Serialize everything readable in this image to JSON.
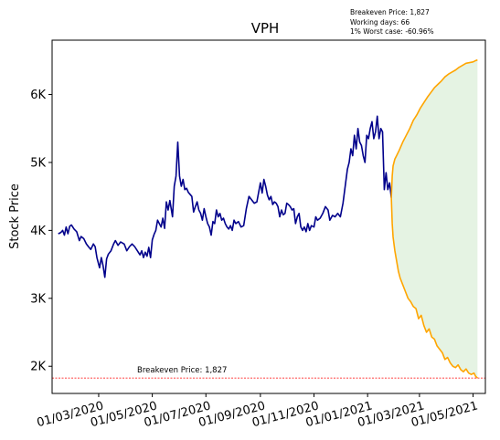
{
  "chart_data": {
    "type": "line",
    "title": "VPH",
    "ylabel": "Stock Price",
    "xlabel": "",
    "ylim": [
      1600,
      6800
    ],
    "xlim": [
      "2020-01-08",
      "2021-05-15"
    ],
    "grid": false,
    "y_ticks": [
      {
        "value": 2000,
        "label": "2K"
      },
      {
        "value": 3000,
        "label": "3K"
      },
      {
        "value": 4000,
        "label": "4K"
      },
      {
        "value": 5000,
        "label": "5K"
      },
      {
        "value": 6000,
        "label": "6K"
      }
    ],
    "x_ticks": [
      {
        "date": "2020-03-01",
        "label": "01/03/2020"
      },
      {
        "date": "2020-05-01",
        "label": "01/05/2020"
      },
      {
        "date": "2020-07-01",
        "label": "01/07/2020"
      },
      {
        "date": "2020-09-01",
        "label": "01/09/2020"
      },
      {
        "date": "2020-11-01",
        "label": "01/11/2020"
      },
      {
        "date": "2021-01-01",
        "label": "01/01/2021"
      },
      {
        "date": "2021-03-01",
        "label": "01/03/2021"
      },
      {
        "date": "2021-05-01",
        "label": "01/05/2021"
      }
    ],
    "series": [
      {
        "color": "#00008b",
        "points": [
          [
            "2020-01-15",
            3950
          ],
          [
            "2020-01-18",
            3970
          ],
          [
            "2020-01-20",
            4000
          ],
          [
            "2020-01-22",
            3930
          ],
          [
            "2020-01-24",
            4050
          ],
          [
            "2020-01-26",
            3950
          ],
          [
            "2020-01-28",
            4060
          ],
          [
            "2020-01-30",
            4080
          ],
          [
            "2020-02-02",
            4020
          ],
          [
            "2020-02-05",
            3980
          ],
          [
            "2020-02-08",
            3850
          ],
          [
            "2020-02-10",
            3910
          ],
          [
            "2020-02-13",
            3880
          ],
          [
            "2020-02-16",
            3800
          ],
          [
            "2020-02-19",
            3750
          ],
          [
            "2020-02-21",
            3720
          ],
          [
            "2020-02-24",
            3800
          ],
          [
            "2020-02-26",
            3760
          ],
          [
            "2020-02-28",
            3600
          ],
          [
            "2020-03-02",
            3450
          ],
          [
            "2020-03-04",
            3600
          ],
          [
            "2020-03-06",
            3480
          ],
          [
            "2020-03-08",
            3310
          ],
          [
            "2020-03-10",
            3580
          ],
          [
            "2020-03-12",
            3650
          ],
          [
            "2020-03-15",
            3700
          ],
          [
            "2020-03-18",
            3800
          ],
          [
            "2020-03-20",
            3850
          ],
          [
            "2020-03-23",
            3780
          ],
          [
            "2020-03-26",
            3830
          ],
          [
            "2020-03-30",
            3800
          ],
          [
            "2020-04-02",
            3700
          ],
          [
            "2020-04-05",
            3760
          ],
          [
            "2020-04-08",
            3800
          ],
          [
            "2020-04-11",
            3760
          ],
          [
            "2020-04-14",
            3700
          ],
          [
            "2020-04-17",
            3640
          ],
          [
            "2020-04-19",
            3700
          ],
          [
            "2020-04-21",
            3600
          ],
          [
            "2020-04-23",
            3680
          ],
          [
            "2020-04-25",
            3620
          ],
          [
            "2020-04-27",
            3750
          ],
          [
            "2020-04-29",
            3600
          ],
          [
            "2020-05-01",
            3860
          ],
          [
            "2020-05-03",
            3940
          ],
          [
            "2020-05-05",
            4000
          ],
          [
            "2020-05-07",
            4150
          ],
          [
            "2020-05-09",
            4100
          ],
          [
            "2020-05-11",
            4050
          ],
          [
            "2020-05-13",
            4180
          ],
          [
            "2020-05-15",
            4030
          ],
          [
            "2020-05-17",
            4420
          ],
          [
            "2020-05-19",
            4300
          ],
          [
            "2020-05-21",
            4440
          ],
          [
            "2020-05-24",
            4200
          ],
          [
            "2020-05-26",
            4650
          ],
          [
            "2020-05-28",
            4800
          ],
          [
            "2020-05-30",
            5300
          ],
          [
            "2020-06-01",
            4800
          ],
          [
            "2020-06-03",
            4650
          ],
          [
            "2020-06-05",
            4750
          ],
          [
            "2020-06-07",
            4600
          ],
          [
            "2020-06-09",
            4620
          ],
          [
            "2020-06-11",
            4560
          ],
          [
            "2020-06-13",
            4530
          ],
          [
            "2020-06-15",
            4500
          ],
          [
            "2020-06-17",
            4270
          ],
          [
            "2020-06-19",
            4350
          ],
          [
            "2020-06-21",
            4420
          ],
          [
            "2020-06-23",
            4300
          ],
          [
            "2020-06-25",
            4250
          ],
          [
            "2020-06-27",
            4150
          ],
          [
            "2020-06-29",
            4320
          ],
          [
            "2020-07-01",
            4200
          ],
          [
            "2020-07-03",
            4100
          ],
          [
            "2020-07-05",
            4050
          ],
          [
            "2020-07-07",
            3930
          ],
          [
            "2020-07-09",
            4130
          ],
          [
            "2020-07-11",
            4100
          ],
          [
            "2020-07-13",
            4300
          ],
          [
            "2020-07-15",
            4200
          ],
          [
            "2020-07-17",
            4250
          ],
          [
            "2020-07-19",
            4150
          ],
          [
            "2020-07-21",
            4180
          ],
          [
            "2020-07-23",
            4100
          ],
          [
            "2020-07-25",
            4050
          ],
          [
            "2020-07-27",
            4020
          ],
          [
            "2020-07-29",
            4070
          ],
          [
            "2020-07-31",
            4000
          ],
          [
            "2020-08-02",
            4150
          ],
          [
            "2020-08-04",
            4100
          ],
          [
            "2020-08-07",
            4130
          ],
          [
            "2020-08-10",
            4050
          ],
          [
            "2020-08-13",
            4070
          ],
          [
            "2020-08-16",
            4320
          ],
          [
            "2020-08-19",
            4500
          ],
          [
            "2020-08-22",
            4450
          ],
          [
            "2020-08-25",
            4400
          ],
          [
            "2020-08-28",
            4420
          ],
          [
            "2020-09-01",
            4700
          ],
          [
            "2020-09-03",
            4550
          ],
          [
            "2020-09-05",
            4750
          ],
          [
            "2020-09-07",
            4650
          ],
          [
            "2020-09-09",
            4520
          ],
          [
            "2020-09-11",
            4450
          ],
          [
            "2020-09-13",
            4500
          ],
          [
            "2020-09-15",
            4380
          ],
          [
            "2020-09-17",
            4420
          ],
          [
            "2020-09-19",
            4400
          ],
          [
            "2020-09-21",
            4350
          ],
          [
            "2020-09-23",
            4200
          ],
          [
            "2020-09-25",
            4300
          ],
          [
            "2020-09-27",
            4230
          ],
          [
            "2020-09-29",
            4250
          ],
          [
            "2020-10-01",
            4400
          ],
          [
            "2020-10-03",
            4380
          ],
          [
            "2020-10-05",
            4350
          ],
          [
            "2020-10-07",
            4300
          ],
          [
            "2020-10-09",
            4320
          ],
          [
            "2020-10-11",
            4100
          ],
          [
            "2020-10-13",
            4200
          ],
          [
            "2020-10-15",
            4250
          ],
          [
            "2020-10-17",
            4050
          ],
          [
            "2020-10-19",
            4000
          ],
          [
            "2020-10-21",
            4050
          ],
          [
            "2020-10-23",
            3980
          ],
          [
            "2020-10-25",
            4100
          ],
          [
            "2020-10-27",
            4000
          ],
          [
            "2020-10-29",
            4070
          ],
          [
            "2020-11-01",
            4050
          ],
          [
            "2020-11-03",
            4200
          ],
          [
            "2020-11-05",
            4150
          ],
          [
            "2020-11-08",
            4180
          ],
          [
            "2020-11-11",
            4250
          ],
          [
            "2020-11-14",
            4350
          ],
          [
            "2020-11-17",
            4300
          ],
          [
            "2020-11-19",
            4150
          ],
          [
            "2020-11-22",
            4220
          ],
          [
            "2020-11-25",
            4200
          ],
          [
            "2020-11-28",
            4250
          ],
          [
            "2020-12-01",
            4200
          ],
          [
            "2020-12-04",
            4400
          ],
          [
            "2020-12-07",
            4700
          ],
          [
            "2020-12-09",
            4900
          ],
          [
            "2020-12-11",
            5000
          ],
          [
            "2020-12-13",
            5200
          ],
          [
            "2020-12-15",
            5100
          ],
          [
            "2020-12-17",
            5400
          ],
          [
            "2020-12-19",
            5200
          ],
          [
            "2020-12-21",
            5500
          ],
          [
            "2020-12-23",
            5300
          ],
          [
            "2020-12-25",
            5250
          ],
          [
            "2020-12-27",
            5100
          ],
          [
            "2020-12-29",
            5000
          ],
          [
            "2020-12-31",
            5400
          ],
          [
            "2021-01-02",
            5350
          ],
          [
            "2021-01-04",
            5500
          ],
          [
            "2021-01-06",
            5600
          ],
          [
            "2021-01-08",
            5350
          ],
          [
            "2021-01-10",
            5450
          ],
          [
            "2021-01-12",
            5680
          ],
          [
            "2021-01-14",
            5350
          ],
          [
            "2021-01-16",
            5500
          ],
          [
            "2021-01-18",
            5450
          ],
          [
            "2021-01-20",
            4600
          ],
          [
            "2021-01-22",
            4850
          ],
          [
            "2021-01-24",
            4600
          ],
          [
            "2021-01-26",
            4700
          ],
          [
            "2021-01-28",
            4480
          ]
        ]
      },
      {
        "color": "#ffa500",
        "points": [
          [
            "2021-01-28",
            4480
          ],
          [
            "2021-01-29",
            4800
          ],
          [
            "2021-01-30",
            4950
          ],
          [
            "2021-02-01",
            5050
          ],
          [
            "2021-02-03",
            5100
          ],
          [
            "2021-02-06",
            5180
          ],
          [
            "2021-02-10",
            5300
          ],
          [
            "2021-02-14",
            5400
          ],
          [
            "2021-02-18",
            5500
          ],
          [
            "2021-02-22",
            5620
          ],
          [
            "2021-02-26",
            5700
          ],
          [
            "2021-03-02",
            5800
          ],
          [
            "2021-03-06",
            5880
          ],
          [
            "2021-03-10",
            5960
          ],
          [
            "2021-03-14",
            6030
          ],
          [
            "2021-03-18",
            6100
          ],
          [
            "2021-03-22",
            6150
          ],
          [
            "2021-03-26",
            6200
          ],
          [
            "2021-03-30",
            6260
          ],
          [
            "2021-04-03",
            6300
          ],
          [
            "2021-04-07",
            6330
          ],
          [
            "2021-04-11",
            6360
          ],
          [
            "2021-04-15",
            6400
          ],
          [
            "2021-04-19",
            6430
          ],
          [
            "2021-04-23",
            6460
          ],
          [
            "2021-04-27",
            6470
          ],
          [
            "2021-05-01",
            6480
          ],
          [
            "2021-05-04",
            6500
          ],
          [
            "2021-05-06",
            6510
          ]
        ]
      },
      {
        "color": "#ffa500",
        "points": [
          [
            "2021-01-28",
            4480
          ],
          [
            "2021-01-29",
            4100
          ],
          [
            "2021-01-30",
            3900
          ],
          [
            "2021-02-01",
            3700
          ],
          [
            "2021-02-03",
            3550
          ],
          [
            "2021-02-05",
            3400
          ],
          [
            "2021-02-07",
            3300
          ],
          [
            "2021-02-10",
            3200
          ],
          [
            "2021-02-13",
            3100
          ],
          [
            "2021-02-16",
            3000
          ],
          [
            "2021-02-19",
            2950
          ],
          [
            "2021-02-22",
            2880
          ],
          [
            "2021-02-25",
            2850
          ],
          [
            "2021-02-28",
            2700
          ],
          [
            "2021-03-03",
            2750
          ],
          [
            "2021-03-06",
            2600
          ],
          [
            "2021-03-09",
            2500
          ],
          [
            "2021-03-12",
            2550
          ],
          [
            "2021-03-15",
            2430
          ],
          [
            "2021-03-18",
            2400
          ],
          [
            "2021-03-21",
            2300
          ],
          [
            "2021-03-24",
            2250
          ],
          [
            "2021-03-27",
            2200
          ],
          [
            "2021-03-30",
            2100
          ],
          [
            "2021-04-02",
            2130
          ],
          [
            "2021-04-05",
            2050
          ],
          [
            "2021-04-08",
            2000
          ],
          [
            "2021-04-11",
            1980
          ],
          [
            "2021-04-14",
            2020
          ],
          [
            "2021-04-17",
            1950
          ],
          [
            "2021-04-20",
            1920
          ],
          [
            "2021-04-23",
            1960
          ],
          [
            "2021-04-26",
            1900
          ],
          [
            "2021-04-29",
            1880
          ],
          [
            "2021-05-02",
            1900
          ],
          [
            "2021-05-04",
            1850
          ],
          [
            "2021-05-06",
            1827
          ]
        ]
      }
    ],
    "fill_between": {
      "color": "#d4ebd0",
      "upper_series": 1,
      "lower_series": 2
    },
    "breakeven": {
      "value": 1827,
      "color": "#ff0000",
      "label": "Breakeven Price: 1,827"
    }
  },
  "info": {
    "line1": "Breakeven Price: 1,827",
    "line2": "Working days: 66",
    "line3": "1% Worst case: -60.96%"
  }
}
